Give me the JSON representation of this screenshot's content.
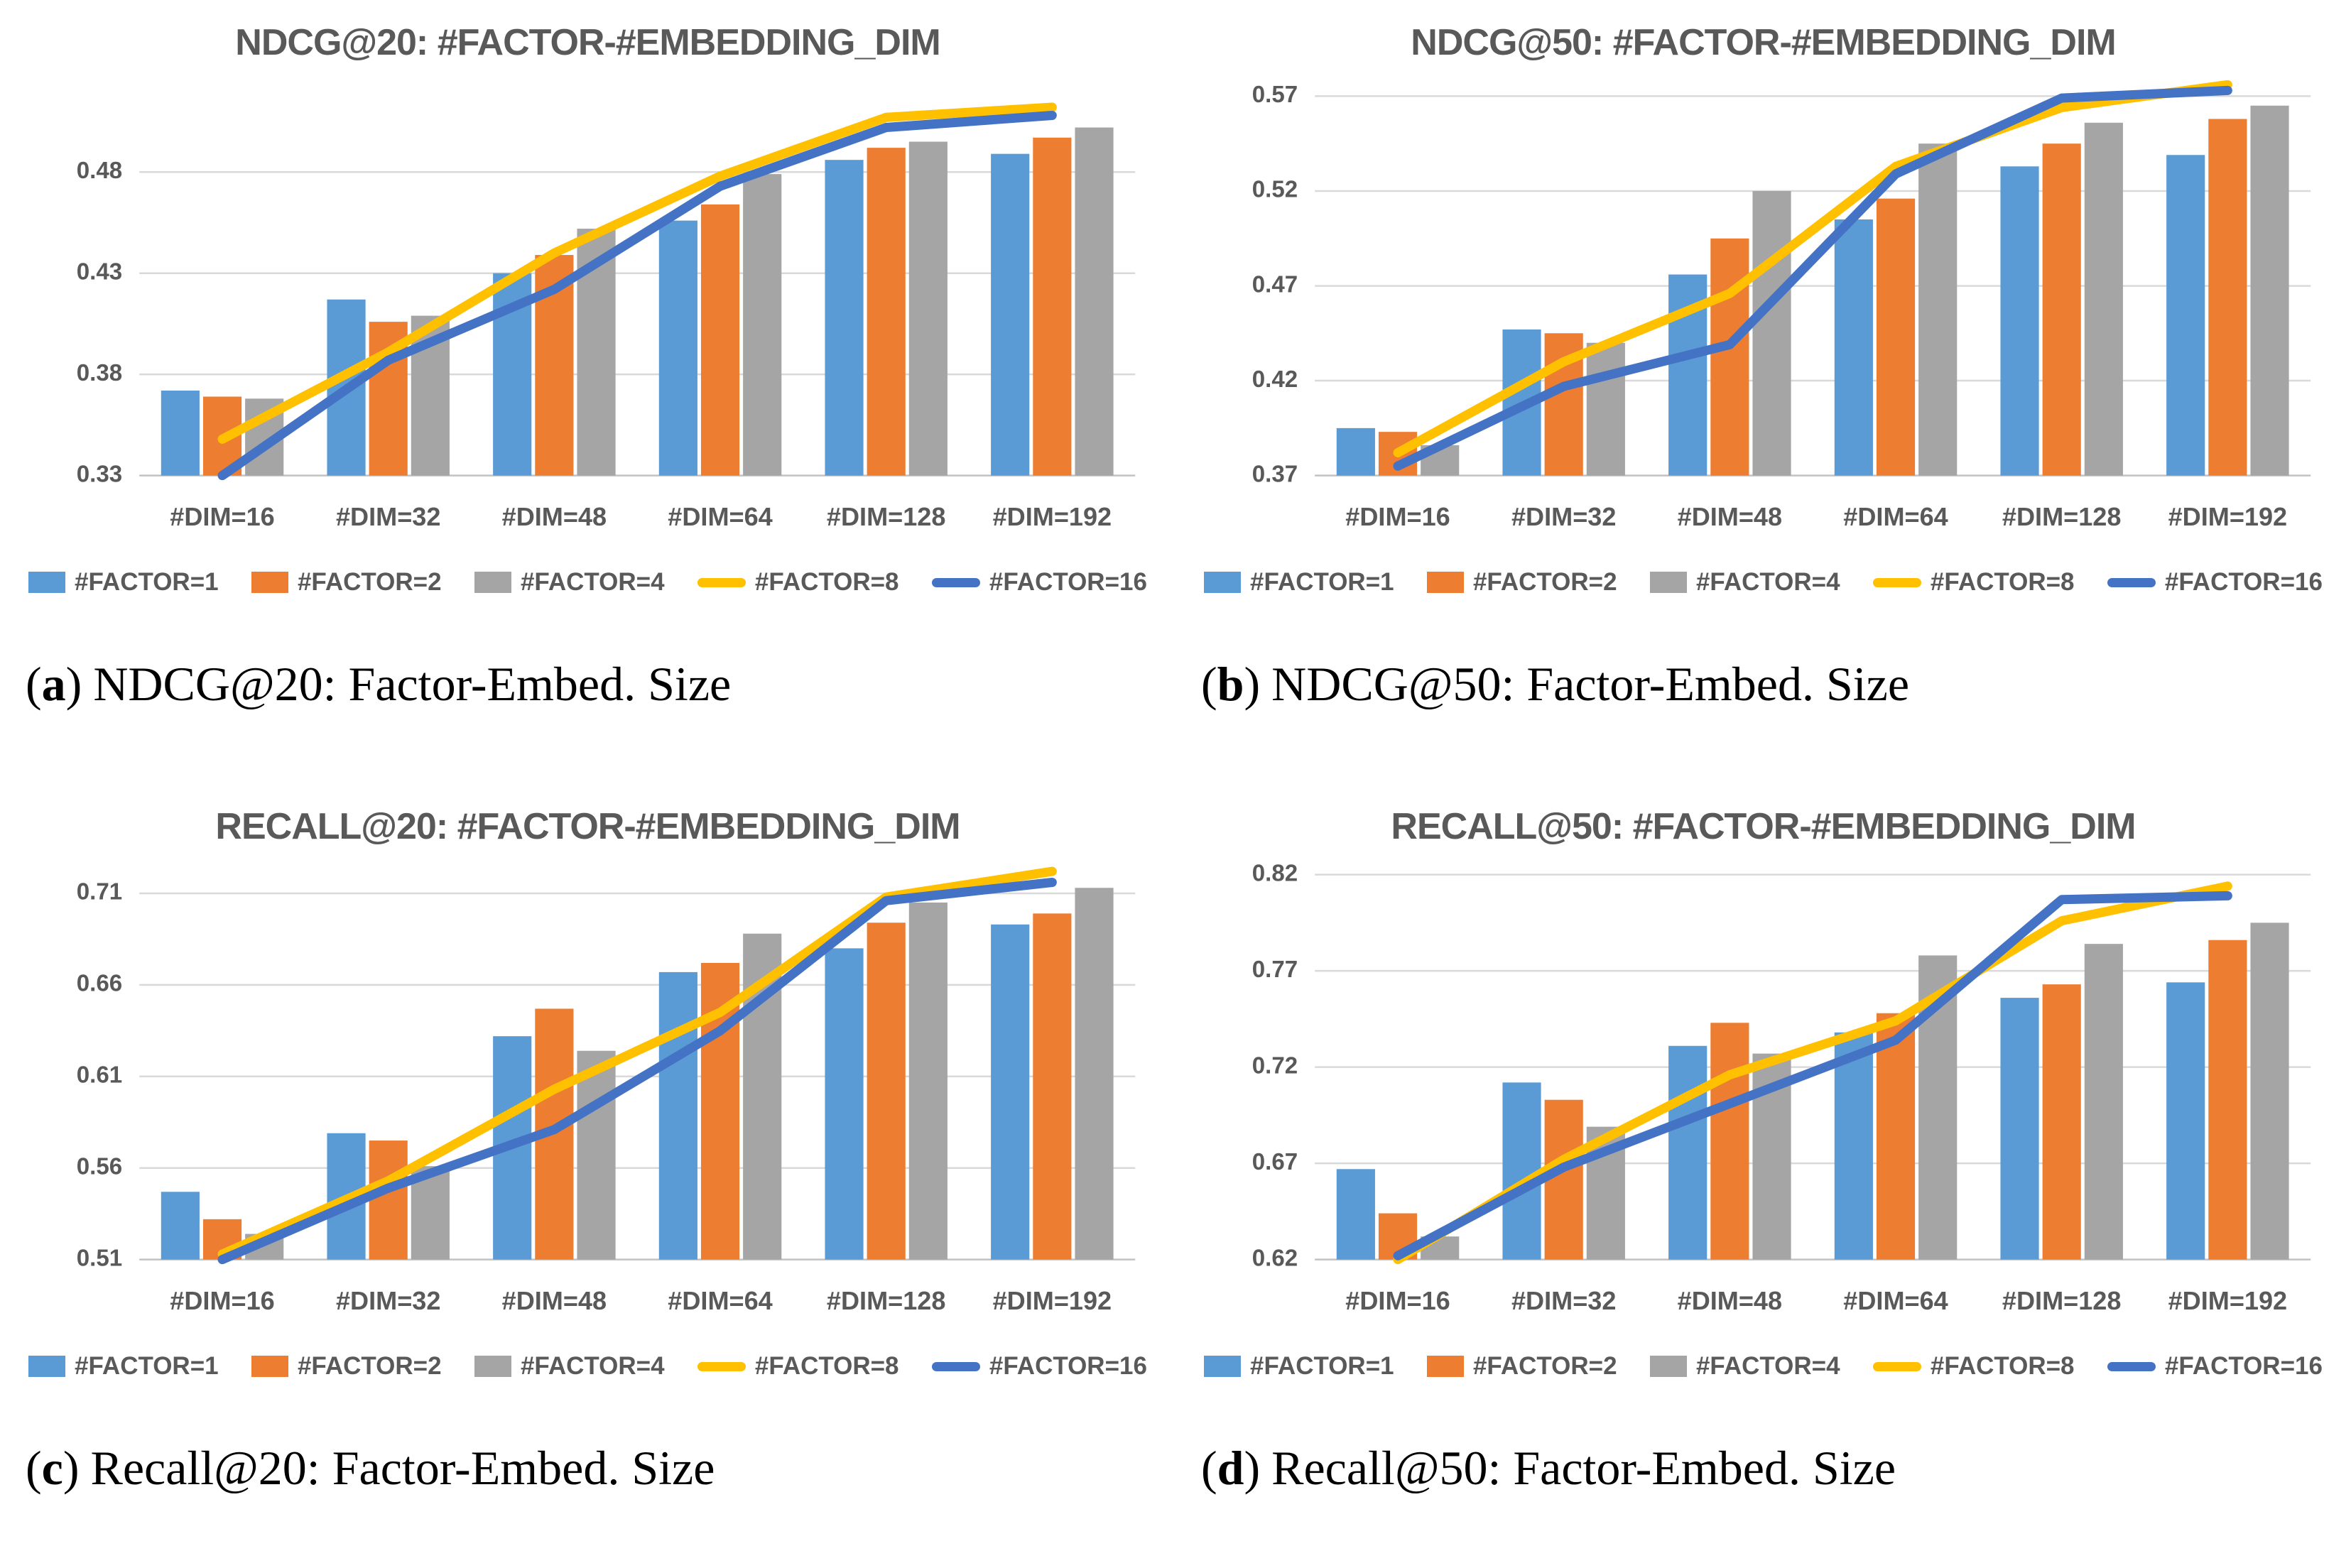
{
  "palette": {
    "factor1_blue": "#5B9BD5",
    "factor2_orange": "#ED7D31",
    "factor4_gray": "#A5A5A5",
    "factor8_yellow": "#FFC000",
    "factor16_darkblue": "#4472C4",
    "title_text": "#595959",
    "axis_text": "#595959",
    "gridline": "#D9D9D9",
    "baseline": "#C2C2C2",
    "background": "#FFFFFF"
  },
  "chart_data": [
    {
      "id": "a",
      "type": "bar",
      "title": "NDCG@20: #FACTOR-#EMBEDDING_DIM",
      "caption": {
        "open": "(",
        "letter": "a",
        "close": ")",
        "text": "NDCG@20: Factor-Embed. Size"
      },
      "categories": [
        "#DIM=16",
        "#DIM=32",
        "#DIM=48",
        "#DIM=64",
        "#DIM=128",
        "#DIM=192"
      ],
      "ylim": [
        0.33,
        0.525
      ],
      "yticks": [
        0.33,
        0.38,
        0.43,
        0.48
      ],
      "grid": true,
      "legend_position": "bottom",
      "series": [
        {
          "name": "#FACTOR=1",
          "type": "bar",
          "color": "#5B9BD5",
          "values": [
            0.372,
            0.417,
            0.43,
            0.456,
            0.486,
            0.489
          ]
        },
        {
          "name": "#FACTOR=2",
          "type": "bar",
          "color": "#ED7D31",
          "values": [
            0.369,
            0.406,
            0.439,
            0.464,
            0.492,
            0.497
          ]
        },
        {
          "name": "#FACTOR=4",
          "type": "bar",
          "color": "#A5A5A5",
          "values": [
            0.368,
            0.409,
            0.452,
            0.479,
            0.495,
            0.502
          ]
        },
        {
          "name": "#FACTOR=8",
          "type": "line",
          "color": "#FFC000",
          "values": [
            0.348,
            0.391,
            0.44,
            0.478,
            0.507,
            0.512
          ]
        },
        {
          "name": "#FACTOR=16",
          "type": "line",
          "color": "#4472C4",
          "values": [
            0.33,
            0.387,
            0.422,
            0.473,
            0.502,
            0.508
          ]
        }
      ]
    },
    {
      "id": "b",
      "type": "bar",
      "title": "NDCG@50: #FACTOR-#EMBEDDING_DIM",
      "caption": {
        "open": "(",
        "letter": "b",
        "close": ")",
        "text": "NDCG@50: Factor-Embed. Size"
      },
      "categories": [
        "#DIM=16",
        "#DIM=32",
        "#DIM=48",
        "#DIM=64",
        "#DIM=128",
        "#DIM=192"
      ],
      "ylim": [
        0.37,
        0.578
      ],
      "yticks": [
        0.37,
        0.42,
        0.47,
        0.52,
        0.57
      ],
      "grid": true,
      "legend_position": "bottom",
      "series": [
        {
          "name": "#FACTOR=1",
          "type": "bar",
          "color": "#5B9BD5",
          "values": [
            0.395,
            0.447,
            0.476,
            0.505,
            0.533,
            0.539
          ]
        },
        {
          "name": "#FACTOR=2",
          "type": "bar",
          "color": "#ED7D31",
          "values": [
            0.393,
            0.445,
            0.495,
            0.516,
            0.545,
            0.558
          ]
        },
        {
          "name": "#FACTOR=4",
          "type": "bar",
          "color": "#A5A5A5",
          "values": [
            0.386,
            0.44,
            0.52,
            0.545,
            0.556,
            0.565
          ]
        },
        {
          "name": "#FACTOR=8",
          "type": "line",
          "color": "#FFC000",
          "values": [
            0.382,
            0.43,
            0.466,
            0.533,
            0.564,
            0.576
          ]
        },
        {
          "name": "#FACTOR=16",
          "type": "line",
          "color": "#4472C4",
          "values": [
            0.375,
            0.417,
            0.439,
            0.529,
            0.569,
            0.573
          ]
        }
      ]
    },
    {
      "id": "c",
      "type": "bar",
      "title": "RECALL@20: #FACTOR-#EMBEDDING_DIM",
      "caption": {
        "open": "(",
        "letter": "c",
        "close": ")",
        "text": "Recall@20: Factor-Embed. Size"
      },
      "categories": [
        "#DIM=16",
        "#DIM=32",
        "#DIM=48",
        "#DIM=64",
        "#DIM=128",
        "#DIM=192"
      ],
      "ylim": [
        0.51,
        0.7255
      ],
      "yticks": [
        0.51,
        0.56,
        0.61,
        0.66,
        0.71
      ],
      "grid": true,
      "legend_position": "bottom",
      "series": [
        {
          "name": "#FACTOR=1",
          "type": "bar",
          "color": "#5B9BD5",
          "values": [
            0.547,
            0.579,
            0.632,
            0.667,
            0.68,
            0.693
          ]
        },
        {
          "name": "#FACTOR=2",
          "type": "bar",
          "color": "#ED7D31",
          "values": [
            0.532,
            0.575,
            0.647,
            0.672,
            0.694,
            0.699
          ]
        },
        {
          "name": "#FACTOR=4",
          "type": "bar",
          "color": "#A5A5A5",
          "values": [
            0.524,
            0.561,
            0.624,
            0.688,
            0.705,
            0.713
          ]
        },
        {
          "name": "#FACTOR=8",
          "type": "line",
          "color": "#FFC000",
          "values": [
            0.513,
            0.553,
            0.603,
            0.645,
            0.708,
            0.722
          ]
        },
        {
          "name": "#FACTOR=16",
          "type": "line",
          "color": "#4472C4",
          "values": [
            0.51,
            0.549,
            0.581,
            0.635,
            0.706,
            0.716
          ]
        }
      ]
    },
    {
      "id": "d",
      "type": "bar",
      "title": "RECALL@50: #FACTOR-#EMBEDDING_DIM",
      "caption": {
        "open": "(",
        "letter": "d",
        "close": ")",
        "text": "Recall@50: Factor-Embed. Size"
      },
      "categories": [
        "#DIM=16",
        "#DIM=32",
        "#DIM=48",
        "#DIM=64",
        "#DIM=128",
        "#DIM=192"
      ],
      "ylim": [
        0.62,
        0.825
      ],
      "yticks": [
        0.62,
        0.67,
        0.72,
        0.77,
        0.82
      ],
      "grid": true,
      "legend_position": "bottom",
      "series": [
        {
          "name": "#FACTOR=1",
          "type": "bar",
          "color": "#5B9BD5",
          "values": [
            0.667,
            0.712,
            0.731,
            0.738,
            0.756,
            0.764
          ]
        },
        {
          "name": "#FACTOR=2",
          "type": "bar",
          "color": "#ED7D31",
          "values": [
            0.644,
            0.703,
            0.743,
            0.748,
            0.763,
            0.786
          ]
        },
        {
          "name": "#FACTOR=4",
          "type": "bar",
          "color": "#A5A5A5",
          "values": [
            0.632,
            0.689,
            0.727,
            0.778,
            0.784,
            0.795
          ]
        },
        {
          "name": "#FACTOR=8",
          "type": "line",
          "color": "#FFC000",
          "values": [
            0.62,
            0.672,
            0.716,
            0.744,
            0.796,
            0.814
          ]
        },
        {
          "name": "#FACTOR=16",
          "type": "line",
          "color": "#4472C4",
          "values": [
            0.622,
            0.668,
            0.701,
            0.734,
            0.807,
            0.809
          ]
        }
      ]
    }
  ]
}
